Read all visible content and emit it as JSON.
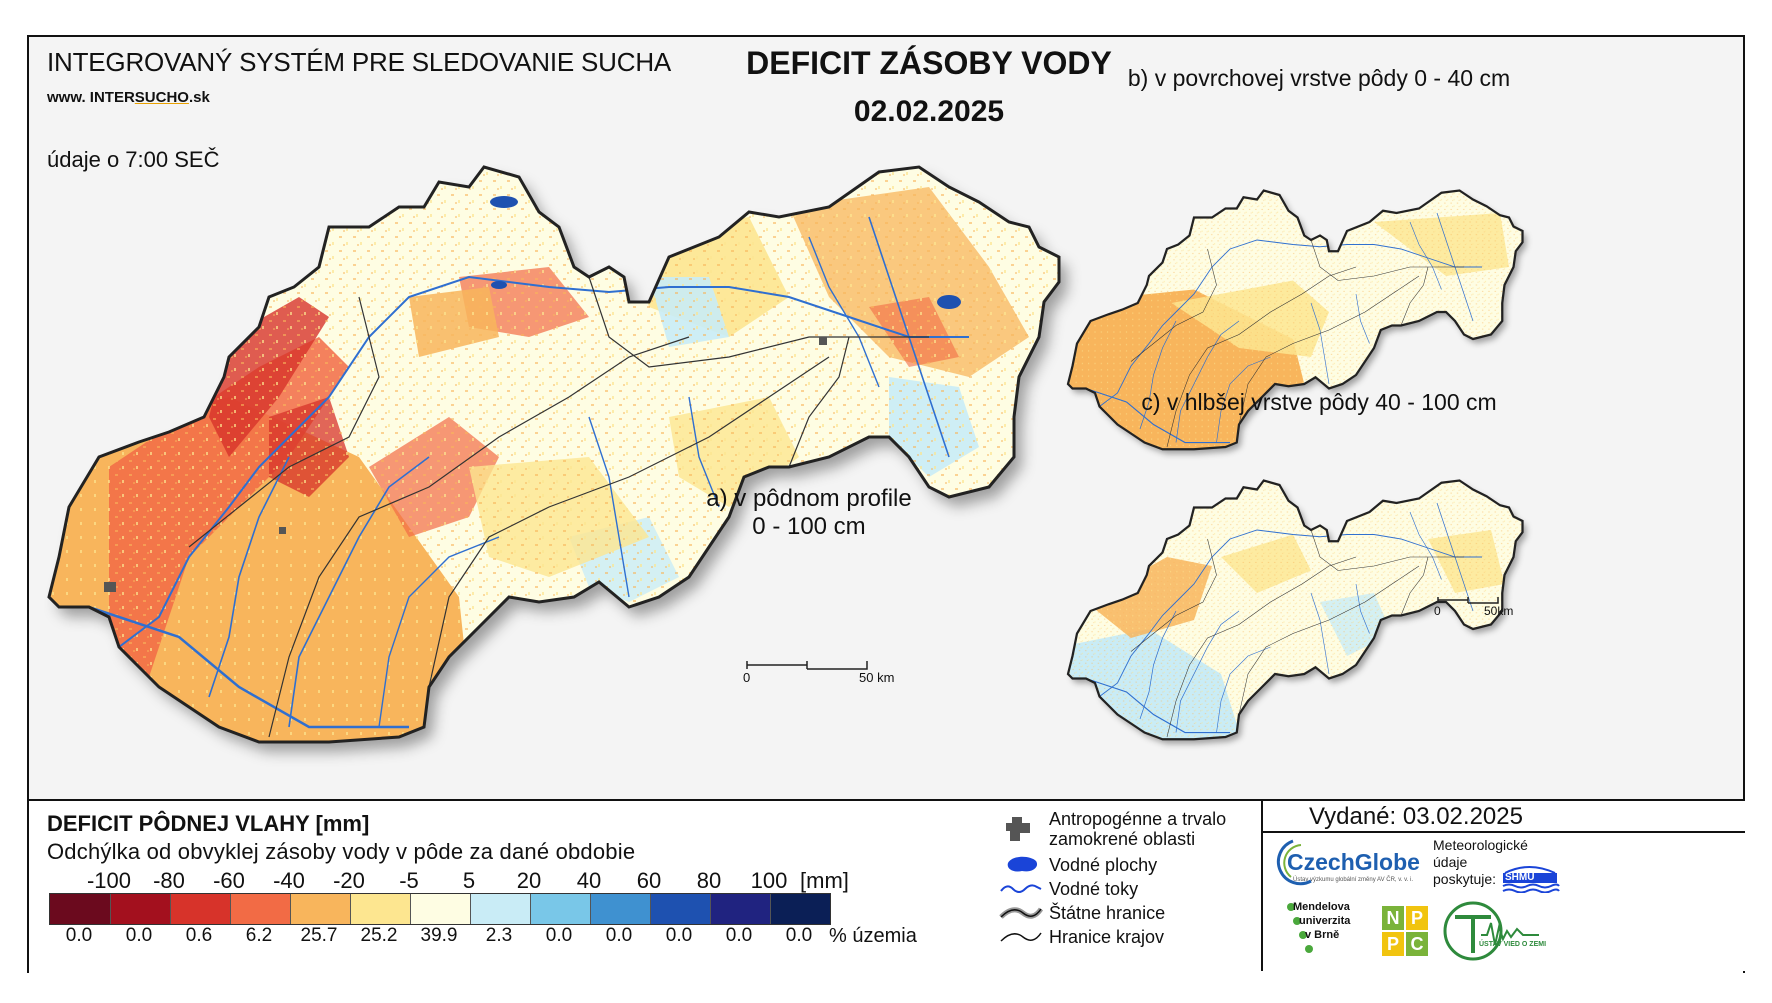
{
  "header": {
    "system_title": "INTEGROVANÝ SYSTÉM PRE SLEDOVANIE SUCHA",
    "website_prefix": "www. INTER",
    "website_accent": "SUCHO",
    "website_suffix": ".sk",
    "time_note": "údaje o 7:00 SEČ",
    "title": "DEFICIT ZÁSOBY VODY",
    "date": "02.02.2025"
  },
  "maps": {
    "main_caption_line1": "a) v pôdnom profile",
    "main_caption_line2": "0 - 100 cm",
    "surface_caption": "b) v povrchovej vrstve pôdy 0 - 40 cm",
    "deep_caption": "c) v hlbšej vrstve pôdy 40 - 100 cm",
    "main_scale": {
      "zero": "0",
      "end": "50 km"
    },
    "small_scale": {
      "zero": "0",
      "end": "50km"
    }
  },
  "legend": {
    "title": "DEFICIT PÔDNEJ VLAHY [mm]",
    "subtitle": "Odchýlka od obvyklej zásoby vody v pôde za dané obdobie",
    "unit": "[mm]",
    "percent_label": "% územia",
    "breaks": [
      "-100",
      "-80",
      "-60",
      "-40",
      "-20",
      "-5",
      "5",
      "20",
      "40",
      "60",
      "80",
      "100"
    ],
    "classes": [
      {
        "color": "#6b0a1e",
        "percent": "0.0"
      },
      {
        "color": "#a3101e",
        "percent": "0.0"
      },
      {
        "color": "#d7332a",
        "percent": "0.6"
      },
      {
        "color": "#f26b45",
        "percent": "6.2"
      },
      {
        "color": "#f8b55c",
        "percent": "25.7"
      },
      {
        "color": "#fde690",
        "percent": "25.2"
      },
      {
        "color": "#fefde3",
        "percent": "39.9"
      },
      {
        "color": "#c9ecf6",
        "percent": "2.3"
      },
      {
        "color": "#79c7e8",
        "percent": "0.0"
      },
      {
        "color": "#3f91d0",
        "percent": "0.0"
      },
      {
        "color": "#1e51b0",
        "percent": "0.0"
      },
      {
        "color": "#202380",
        "percent": "0.0"
      },
      {
        "color": "#0b1f56",
        "percent": "0.0"
      }
    ]
  },
  "symbols": {
    "urban_line1": "Antropogénne a trvalo",
    "urban_line2": "zamokrené oblasti",
    "water_bodies": "Vodné plochy",
    "rivers": "Vodné toky",
    "state_border": "Štátne hranice",
    "region_border": "Hranice krajov"
  },
  "issued": {
    "label": "Vydané: 03.02.2025",
    "meteo_line1": "Meteorologické",
    "meteo_line2": "údaje",
    "meteo_line3": "poskytuje:"
  },
  "logos": {
    "czechglobe": "CzechGlobe",
    "czechglobe_sub": "Ústav výzkumu globální změny AV ČR, v. v. i.",
    "shmu": "SHMÚ",
    "mendel_line1": "Mendelova",
    "mendel_line2": "univerzita",
    "mendel_line3": "v Brně",
    "nppc_letters": [
      "N",
      "P",
      "P",
      "C"
    ],
    "uvz": "ÚSTAV VIED O ZEMI"
  },
  "colors": {
    "dry_orange": "#f8b55c",
    "dry_red": "#d7332a",
    "neutral": "#fefde3",
    "wet_blue": "#c9ecf6",
    "river": "#2f6fd0",
    "border": "#222222"
  }
}
